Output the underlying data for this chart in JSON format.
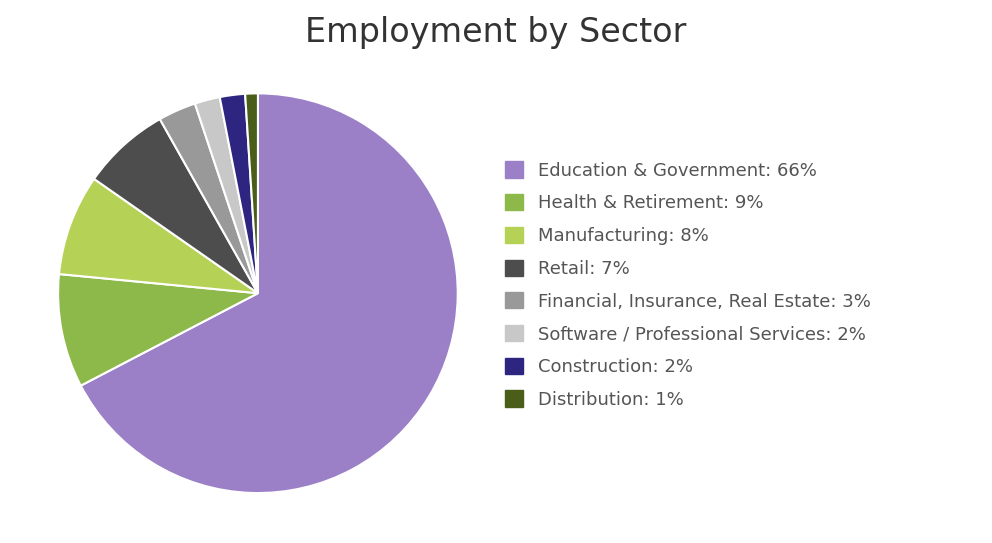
{
  "title": "Employment by Sector",
  "labels": [
    "Education & Government: 66%",
    "Health & Retirement: 9%",
    "Manufacturing: 8%",
    "Retail: 7%",
    "Financial, Insurance, Real Estate: 3%",
    "Software / Professional Services: 2%",
    "Construction: 2%",
    "Distribution: 1%"
  ],
  "values": [
    66,
    9,
    8,
    7,
    3,
    2,
    2,
    1
  ],
  "colors": [
    "#9b80c8",
    "#8db84a",
    "#b5d156",
    "#4d4d4d",
    "#999999",
    "#c8c8c8",
    "#2d2580",
    "#4a5e1a"
  ],
  "title_fontsize": 24,
  "legend_fontsize": 13,
  "background_color": "#ffffff",
  "startangle": 90,
  "wedge_edge_color": "white"
}
